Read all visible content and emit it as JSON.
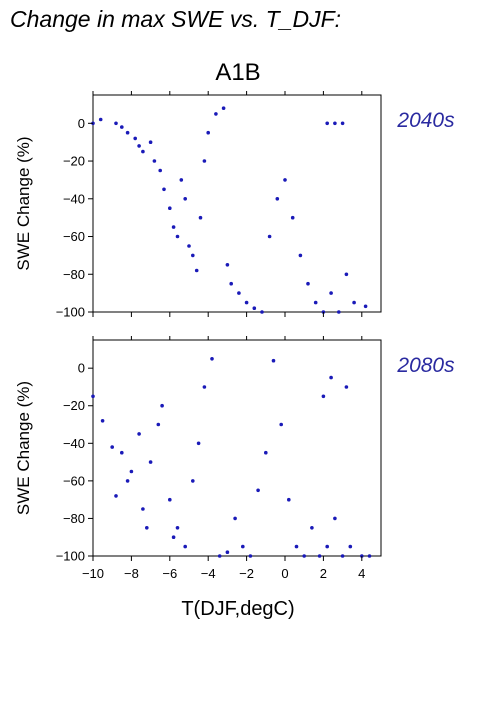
{
  "figure": {
    "title": "Change in max SWE vs. T_DJF:",
    "scenario": "A1B",
    "accent_color": "#1a1ab8",
    "period_label_color": "#2a2aa0"
  },
  "chart_data": [
    {
      "type": "scatter",
      "period": "2040s",
      "ylabel": "SWE Change (%)",
      "xlabel": "T(DJF,degC)",
      "xlim": [
        -10,
        5
      ],
      "ylim": [
        -100,
        15
      ],
      "xticks": [
        -10,
        -8,
        -6,
        -4,
        -2,
        0,
        2,
        4
      ],
      "yticks": [
        0,
        -20,
        -40,
        -60,
        -80,
        -100
      ],
      "y_tick_labels": [
        "0",
        "−20",
        "−40",
        "−60",
        "−80",
        "−100"
      ],
      "x_tick_labels": [],
      "grid": false,
      "marker_color": "#1a1ab8",
      "points": [
        [
          -10.0,
          0
        ],
        [
          -9.6,
          2
        ],
        [
          -8.8,
          0
        ],
        [
          -8.5,
          -2
        ],
        [
          -8.2,
          -5
        ],
        [
          -7.8,
          -8
        ],
        [
          -7.6,
          -12
        ],
        [
          -7.4,
          -15
        ],
        [
          -7.0,
          -10
        ],
        [
          -6.8,
          -20
        ],
        [
          -6.5,
          -25
        ],
        [
          -6.3,
          -35
        ],
        [
          -6.0,
          -45
        ],
        [
          -5.8,
          -55
        ],
        [
          -5.6,
          -60
        ],
        [
          -5.4,
          -30
        ],
        [
          -5.2,
          -40
        ],
        [
          -5.0,
          -65
        ],
        [
          -4.8,
          -70
        ],
        [
          -4.6,
          -78
        ],
        [
          -4.4,
          -50
        ],
        [
          -4.2,
          -20
        ],
        [
          -4.0,
          -5
        ],
        [
          -3.6,
          5
        ],
        [
          -3.2,
          8
        ],
        [
          -3.0,
          -75
        ],
        [
          -2.8,
          -85
        ],
        [
          -2.4,
          -90
        ],
        [
          -2.0,
          -95
        ],
        [
          -1.6,
          -98
        ],
        [
          -1.2,
          -100
        ],
        [
          -0.8,
          -60
        ],
        [
          -0.4,
          -40
        ],
        [
          0.0,
          -30
        ],
        [
          0.4,
          -50
        ],
        [
          0.8,
          -70
        ],
        [
          1.2,
          -85
        ],
        [
          1.6,
          -95
        ],
        [
          2.0,
          -100
        ],
        [
          2.4,
          -90
        ],
        [
          2.8,
          -100
        ],
        [
          3.2,
          -80
        ],
        [
          3.6,
          -95
        ],
        [
          4.2,
          -97
        ],
        [
          3.0,
          0
        ],
        [
          2.6,
          0
        ],
        [
          2.2,
          0
        ]
      ]
    },
    {
      "type": "scatter",
      "period": "2080s",
      "ylabel": "SWE Change (%)",
      "xlabel": "T(DJF,degC)",
      "xlim": [
        -10,
        5
      ],
      "ylim": [
        -100,
        15
      ],
      "xticks": [
        -10,
        -8,
        -6,
        -4,
        -2,
        0,
        2,
        4
      ],
      "yticks": [
        0,
        -20,
        -40,
        -60,
        -80,
        -100
      ],
      "y_tick_labels": [
        "0",
        "−20",
        "−40",
        "−60",
        "−80",
        "−100"
      ],
      "x_tick_labels": [
        "−10",
        "−8",
        "−6",
        "−4",
        "−2",
        "0",
        "2",
        "4"
      ],
      "grid": false,
      "marker_color": "#1a1ab8",
      "points": [
        [
          -10.0,
          -15
        ],
        [
          -9.5,
          -28
        ],
        [
          -9.0,
          -42
        ],
        [
          -8.8,
          -68
        ],
        [
          -8.5,
          -45
        ],
        [
          -8.2,
          -60
        ],
        [
          -8.0,
          -55
        ],
        [
          -7.6,
          -35
        ],
        [
          -7.4,
          -75
        ],
        [
          -7.2,
          -85
        ],
        [
          -7.0,
          -50
        ],
        [
          -6.6,
          -30
        ],
        [
          -6.4,
          -20
        ],
        [
          -6.0,
          -70
        ],
        [
          -5.8,
          -90
        ],
        [
          -5.6,
          -85
        ],
        [
          -5.2,
          -95
        ],
        [
          -4.8,
          -60
        ],
        [
          -4.5,
          -40
        ],
        [
          -4.2,
          -10
        ],
        [
          -3.8,
          5
        ],
        [
          -3.4,
          -100
        ],
        [
          -3.0,
          -98
        ],
        [
          -2.6,
          -80
        ],
        [
          -2.2,
          -95
        ],
        [
          -1.8,
          -100
        ],
        [
          -1.4,
          -65
        ],
        [
          -1.0,
          -45
        ],
        [
          -0.6,
          4
        ],
        [
          -0.2,
          -30
        ],
        [
          0.2,
          -70
        ],
        [
          0.6,
          -95
        ],
        [
          1.0,
          -100
        ],
        [
          1.4,
          -85
        ],
        [
          1.8,
          -100
        ],
        [
          2.2,
          -95
        ],
        [
          2.6,
          -80
        ],
        [
          3.0,
          -100
        ],
        [
          3.4,
          -95
        ],
        [
          4.0,
          -100
        ],
        [
          4.4,
          -100
        ],
        [
          2.4,
          -5
        ],
        [
          2.0,
          -15
        ],
        [
          3.2,
          -10
        ]
      ]
    }
  ]
}
